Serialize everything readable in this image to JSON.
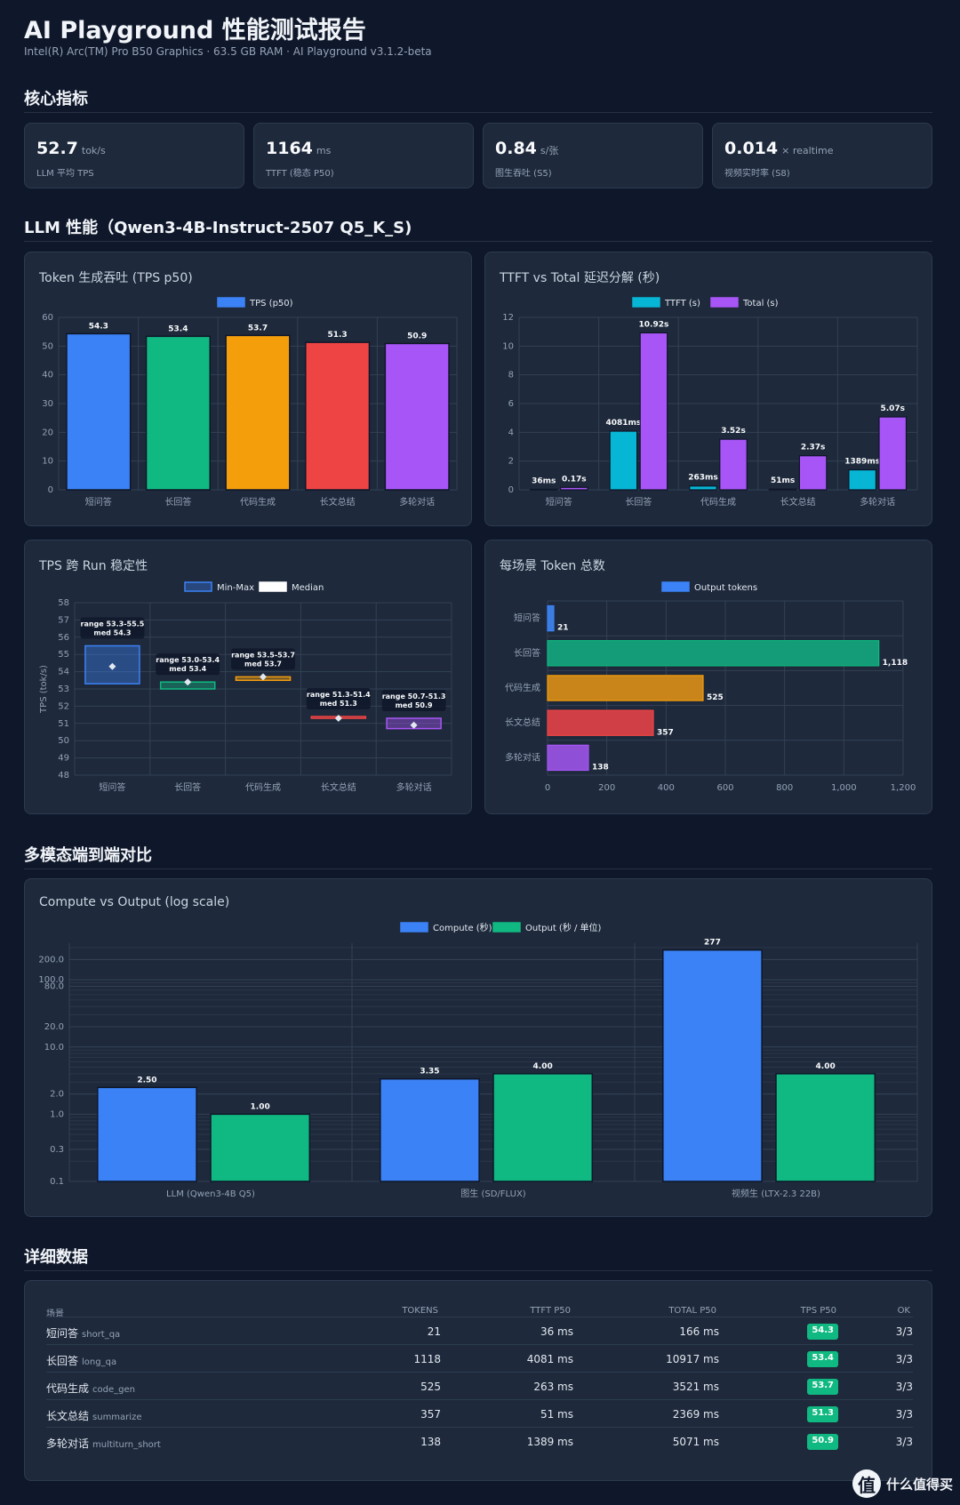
{
  "header": {
    "title": "AI Playground 性能测试报告",
    "subtitle": "Intel(R) Arc(TM) Pro B50 Graphics · 63.5 GB RAM · AI Playground v3.1.2-beta"
  },
  "sections": {
    "kpi": "核心指标",
    "llm": "LLM 性能（Qwen3-4B-Instruct-2507 Q5_K_S)",
    "multimodal": "多模态端到端对比",
    "detail": "详细数据"
  },
  "kpis": [
    {
      "value": "52.7",
      "unit": "tok/s",
      "label": "LLM 平均 TPS"
    },
    {
      "value": "1164",
      "unit": "ms",
      "label": "TTFT (稳态 P50)"
    },
    {
      "value": "0.84",
      "unit": "s/张",
      "label": "图生吞吐 (S5)"
    },
    {
      "value": "0.014",
      "unit": "× realtime",
      "label": "视频实时率 (S8)"
    }
  ],
  "colors": {
    "blue": "#3b82f6",
    "green": "#10b981",
    "orange": "#f59e0b",
    "red": "#ef4444",
    "purple": "#a855f7",
    "cyan": "#06b6d4"
  },
  "chart_data": [
    {
      "type": "bar",
      "title": "Token 生成吞吐 (TPS p50)",
      "categories": [
        "短问答",
        "长回答",
        "代码生成",
        "长文总结",
        "多轮对话"
      ],
      "series": [
        {
          "name": "TPS (p50)",
          "values": [
            54.3,
            53.4,
            53.7,
            51.3,
            50.9
          ]
        }
      ],
      "data_labels": [
        "54.3",
        "53.4",
        "53.7",
        "51.3",
        "50.9"
      ],
      "yticks": [
        "0",
        "10",
        "20",
        "30",
        "40",
        "50",
        "60"
      ],
      "ylim": [
        0,
        60
      ]
    },
    {
      "type": "bar",
      "title": "TTFT vs Total 延迟分解 (秒)",
      "categories": [
        "短问答",
        "长回答",
        "代码生成",
        "长文总结",
        "多轮对话"
      ],
      "series": [
        {
          "name": "TTFT (s)",
          "values": [
            0.036,
            4.081,
            0.263,
            0.051,
            1.389
          ],
          "labels": [
            "36ms",
            "4081ms",
            "263ms",
            "51ms",
            "1389ms"
          ]
        },
        {
          "name": "Total (s)",
          "values": [
            0.17,
            10.92,
            3.52,
            2.37,
            5.07
          ],
          "labels": [
            "0.17s",
            "10.92s",
            "3.52s",
            "2.37s",
            "5.07s"
          ]
        }
      ],
      "yticks": [
        "0",
        "2",
        "4",
        "6",
        "8",
        "10",
        "12"
      ],
      "ylim": [
        0,
        12
      ]
    },
    {
      "type": "bar",
      "title": "TPS 跨 Run 稳定性",
      "categories": [
        "短问答",
        "长回答",
        "代码生成",
        "长文总结",
        "多轮对话"
      ],
      "series": [
        {
          "name": "Min-Max",
          "ranges": [
            [
              53.3,
              55.5
            ],
            [
              53.0,
              53.4
            ],
            [
              53.5,
              53.7
            ],
            [
              51.3,
              51.4
            ],
            [
              50.7,
              51.3
            ]
          ]
        },
        {
          "name": "Median",
          "values": [
            54.3,
            53.4,
            53.7,
            51.3,
            50.9
          ]
        }
      ],
      "annotations": [
        [
          "range  53.3-55.5",
          "med   54.3"
        ],
        [
          "range  53.0-53.4",
          "med   53.4"
        ],
        [
          "range  53.5-53.7",
          "med   53.7"
        ],
        [
          "range  51.3-51.4",
          "med   51.3"
        ],
        [
          "range  50.7-51.3",
          "med   50.9"
        ]
      ],
      "ylabel": "TPS (tok/s)",
      "yticks": [
        "48",
        "49",
        "50",
        "51",
        "52",
        "53",
        "54",
        "55",
        "56",
        "57",
        "58"
      ],
      "ylim": [
        48,
        58
      ]
    },
    {
      "type": "bar",
      "title": "每场景 Token 总数",
      "orientation": "horizontal",
      "categories": [
        "短问答",
        "长回答",
        "代码生成",
        "长文总结",
        "多轮对话"
      ],
      "series": [
        {
          "name": "Output tokens",
          "values": [
            21,
            1118,
            525,
            357,
            138
          ]
        }
      ],
      "data_labels": [
        "21",
        "1,118",
        "525",
        "357",
        "138"
      ],
      "xticks": [
        "0",
        "200",
        "400",
        "600",
        "800",
        "1,000",
        "1,200"
      ],
      "xlim": [
        0,
        1200
      ]
    },
    {
      "type": "bar",
      "title": "Compute vs Output (log scale)",
      "yscale": "log",
      "categories": [
        "LLM (Qwen3-4B Q5)",
        "图生 (SD/FLUX)",
        "视频生 (LTX-2.3 22B)"
      ],
      "series": [
        {
          "name": "Compute (秒)",
          "values": [
            2.5,
            3.35,
            277
          ],
          "labels": [
            "2.50",
            "3.35",
            "277"
          ]
        },
        {
          "name": "Output (秒 / 单位)",
          "values": [
            1.0,
            4.0,
            4.0
          ],
          "labels": [
            "1.00",
            "4.00",
            "4.00"
          ]
        }
      ],
      "yticks": [
        {
          "v": 0.1,
          "t": "0.1"
        },
        {
          "v": 0.3,
          "t": "0.3"
        },
        {
          "v": 1,
          "t": "1.0"
        },
        {
          "v": 2,
          "t": "2.0"
        },
        {
          "v": 10,
          "t": "10.0"
        },
        {
          "v": 20,
          "t": "20.0"
        },
        {
          "v": 80,
          "t": "80.0"
        },
        {
          "v": 100,
          "t": "100.0"
        },
        {
          "v": 200,
          "t": "200.0"
        }
      ],
      "ylim": [
        0.1,
        350
      ]
    }
  ],
  "table": {
    "headers": [
      "场景",
      "TOKENS",
      "TTFT P50",
      "TOTAL P50",
      "TPS P50",
      "OK"
    ],
    "rows": [
      {
        "name": "短问答",
        "code": "short_qa",
        "tokens": "21",
        "ttft": "36 ms",
        "total": "166 ms",
        "tps": "54.3",
        "ok": "3/3"
      },
      {
        "name": "长回答",
        "code": "long_qa",
        "tokens": "1118",
        "ttft": "4081 ms",
        "total": "10917 ms",
        "tps": "53.4",
        "ok": "3/3"
      },
      {
        "name": "代码生成",
        "code": "code_gen",
        "tokens": "525",
        "ttft": "263 ms",
        "total": "3521 ms",
        "tps": "53.7",
        "ok": "3/3"
      },
      {
        "name": "长文总结",
        "code": "summarize",
        "tokens": "357",
        "ttft": "51 ms",
        "total": "2369 ms",
        "tps": "51.3",
        "ok": "3/3"
      },
      {
        "name": "多轮对话",
        "code": "multiturn_short",
        "tokens": "138",
        "ttft": "1389 ms",
        "total": "5071 ms",
        "tps": "50.9",
        "ok": "3/3"
      }
    ]
  },
  "watermark": {
    "glyph": "值",
    "text": "什么值得买"
  }
}
